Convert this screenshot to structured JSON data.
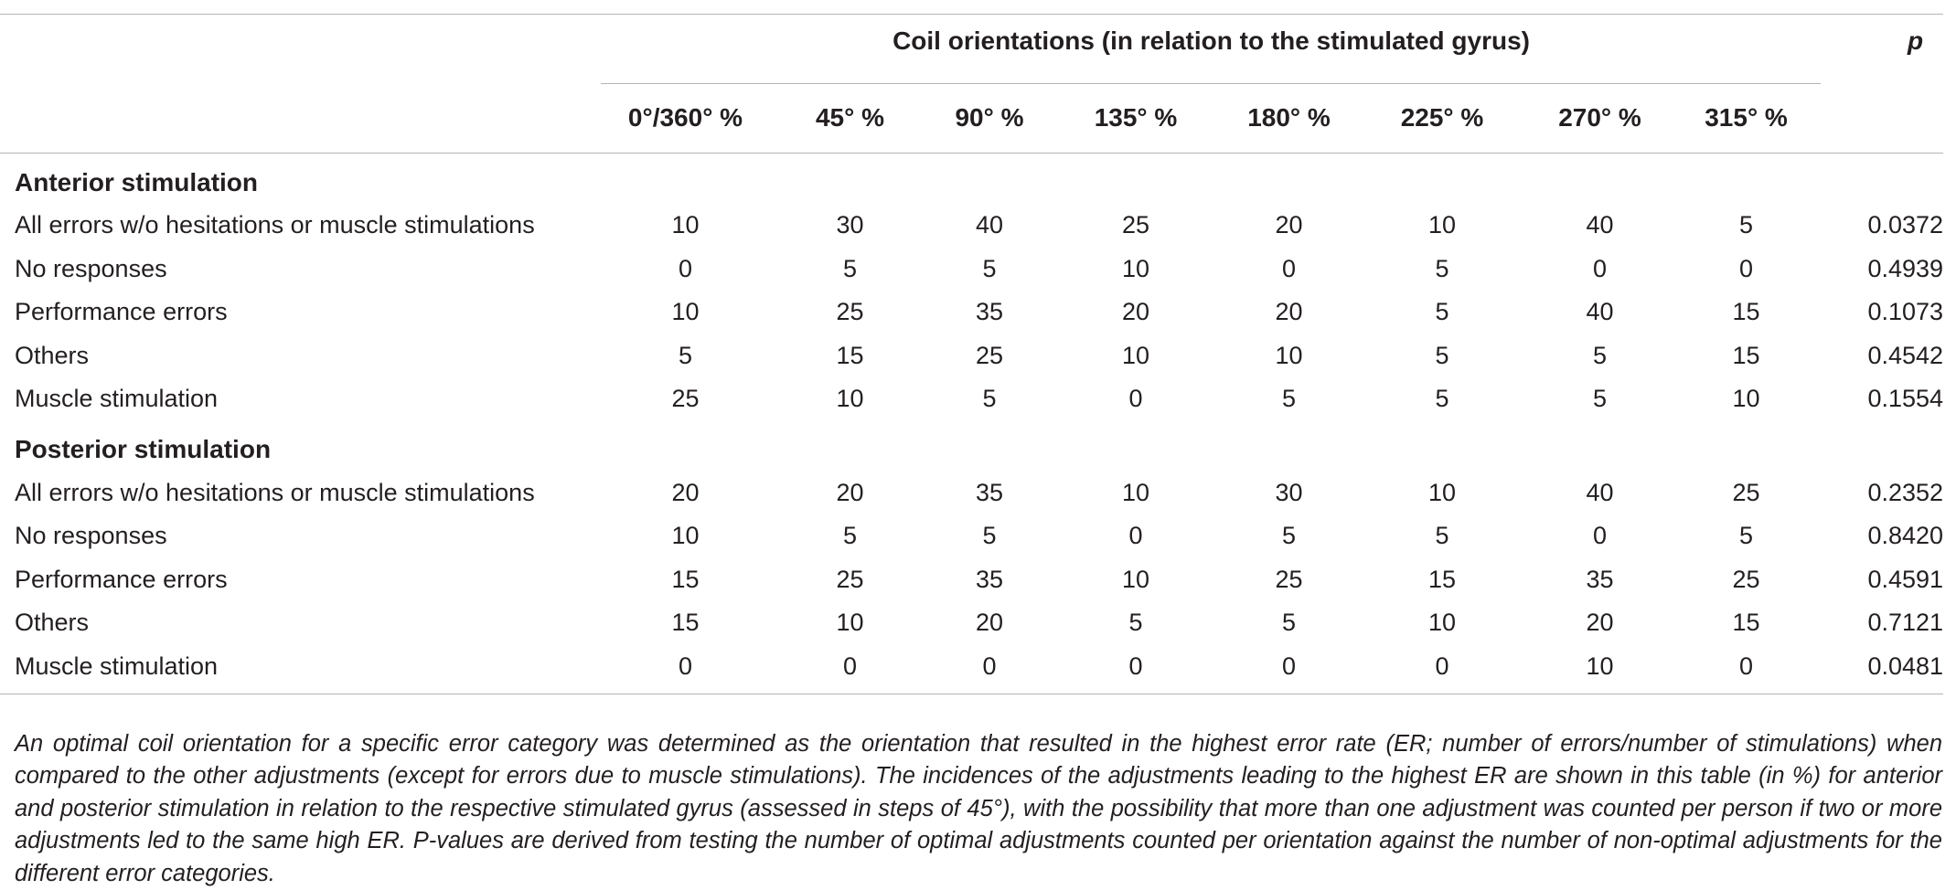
{
  "table": {
    "column_group_label": "Coil orientations (in relation to the stimulated gyrus)",
    "p_header": "p",
    "orientation_headers": [
      "0°/360° %",
      "45° %",
      "90° %",
      "135° %",
      "180° %",
      "225° %",
      "270° %",
      "315° %"
    ],
    "groups": [
      {
        "title": "Anterior stimulation",
        "rows": [
          {
            "label": "All errors w/o hesitations or muscle stimulations",
            "values": [
              "10",
              "30",
              "40",
              "25",
              "20",
              "10",
              "40",
              "5"
            ],
            "p": "0.0372"
          },
          {
            "label": "No responses",
            "values": [
              "0",
              "5",
              "5",
              "10",
              "0",
              "5",
              "0",
              "0"
            ],
            "p": "0.4939"
          },
          {
            "label": "Performance errors",
            "values": [
              "10",
              "25",
              "35",
              "20",
              "20",
              "5",
              "40",
              "15"
            ],
            "p": "0.1073"
          },
          {
            "label": "Others",
            "values": [
              "5",
              "15",
              "25",
              "10",
              "10",
              "5",
              "5",
              "15"
            ],
            "p": "0.4542"
          },
          {
            "label": "Muscle stimulation",
            "values": [
              "25",
              "10",
              "5",
              "0",
              "5",
              "5",
              "5",
              "10"
            ],
            "p": "0.1554"
          }
        ]
      },
      {
        "title": "Posterior stimulation",
        "rows": [
          {
            "label": "All errors w/o hesitations or muscle stimulations",
            "values": [
              "20",
              "20",
              "35",
              "10",
              "30",
              "10",
              "40",
              "25"
            ],
            "p": "0.2352"
          },
          {
            "label": "No responses",
            "values": [
              "10",
              "5",
              "5",
              "0",
              "5",
              "5",
              "0",
              "5"
            ],
            "p": "0.8420"
          },
          {
            "label": "Performance errors",
            "values": [
              "15",
              "25",
              "35",
              "10",
              "25",
              "15",
              "35",
              "25"
            ],
            "p": "0.4591"
          },
          {
            "label": "Others",
            "values": [
              "15",
              "10",
              "20",
              "5",
              "5",
              "10",
              "20",
              "15"
            ],
            "p": "0.7121"
          },
          {
            "label": "Muscle stimulation",
            "values": [
              "0",
              "0",
              "0",
              "0",
              "0",
              "0",
              "10",
              "0"
            ],
            "p": "0.0481"
          }
        ]
      }
    ]
  },
  "footnote": "An optimal coil orientation for a specific error category was determined as the orientation that resulted in the highest error rate (ER; number of errors/number of stimulations) when compared to the other adjustments (except for errors due to muscle stimulations). The incidences of the adjustments leading to the highest ER are shown in this table (in %) for anterior and posterior stimulation in relation to the respective stimulated gyrus (assessed in steps of 45°), with the possibility that more than one adjustment was counted per person if two or more adjustments led to the same high ER. P-values are derived from testing the number of optimal adjustments counted per orientation against the number of non-optimal adjustments for the different error categories."
}
